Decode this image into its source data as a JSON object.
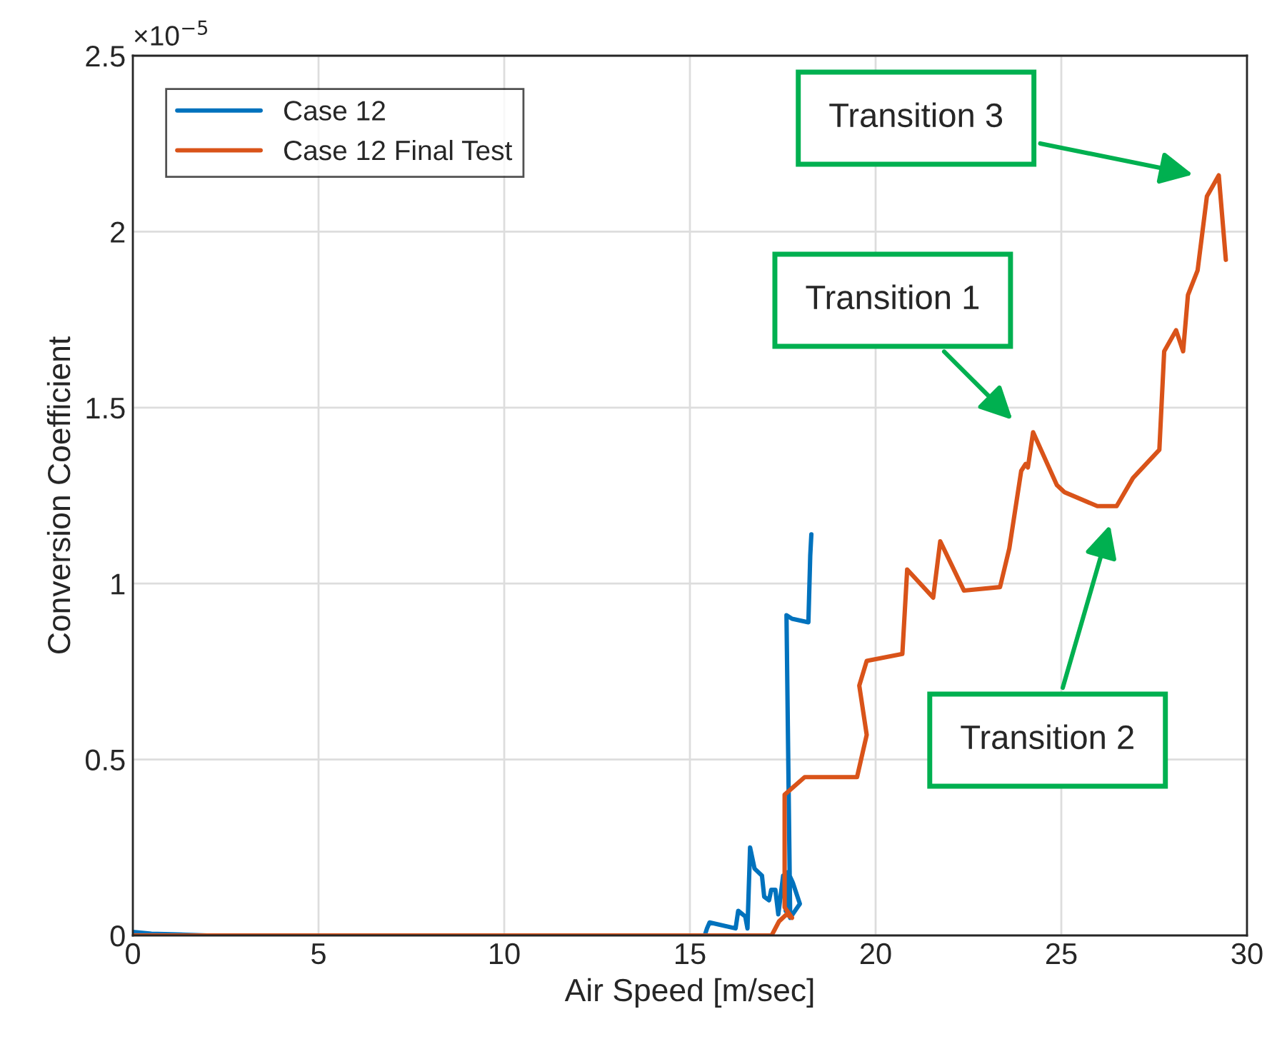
{
  "chart_data": {
    "type": "line",
    "xlabel": "Air Speed [m/sec]",
    "ylabel": "Conversion Coefficient",
    "xlim": [
      0,
      30
    ],
    "xticks": [
      0,
      5,
      10,
      15,
      20,
      25,
      30
    ],
    "ylim": [
      0,
      2.5
    ],
    "yticks": [
      0,
      0.5,
      1,
      1.5,
      2,
      2.5
    ],
    "grid": true,
    "legend": "top left",
    "line_style": "solid",
    "marker": "none",
    "series": [
      {
        "name": "Case 12",
        "color": "#0072bd",
        "x": [
          0,
          0.5,
          2,
          8,
          15.4,
          15.46,
          15.53,
          16.23,
          16.3,
          16.49,
          16.55,
          16.62,
          16.74,
          16.94,
          17.0,
          17.13,
          17.19,
          17.3,
          17.38,
          17.51,
          17.58,
          17.64,
          17.77,
          17.96,
          17.7,
          17.6,
          17.75,
          18.19,
          18.24,
          18.27
        ],
        "values": [
          0.01,
          0.005,
          0,
          0,
          0,
          0.02,
          0.037,
          0.02,
          0.07,
          0.054,
          0.02,
          0.25,
          0.19,
          0.17,
          0.11,
          0.1,
          0.13,
          0.13,
          0.06,
          0.17,
          0.07,
          0.18,
          0.15,
          0.09,
          0.05,
          0.91,
          0.9,
          0.89,
          1.08,
          1.14
        ]
      },
      {
        "name": "Case 12 Final Test",
        "color": "#d95319",
        "x": [
          0,
          5,
          10,
          15,
          17.2,
          17.4,
          17.6,
          17.75,
          17.55,
          17.55,
          18.09,
          19.5,
          19.76,
          19.56,
          19.76,
          20.72,
          20.85,
          21.55,
          21.74,
          22.38,
          23.35,
          23.6,
          23.92,
          24.04,
          24.1,
          24.24,
          24.88,
          25.08,
          25.97,
          26.49,
          26.93,
          27.64,
          27.77,
          28.09,
          28.28,
          28.41,
          28.67,
          28.92,
          29.24,
          29.43
        ],
        "values": [
          0,
          0,
          0,
          0,
          0,
          0.04,
          0.06,
          0.05,
          0.08,
          0.4,
          0.45,
          0.45,
          0.57,
          0.71,
          0.78,
          0.8,
          1.04,
          0.96,
          1.12,
          0.98,
          0.99,
          1.1,
          1.32,
          1.34,
          1.33,
          1.43,
          1.28,
          1.26,
          1.22,
          1.22,
          1.3,
          1.38,
          1.66,
          1.72,
          1.66,
          1.82,
          1.89,
          2.1,
          2.16,
          1.92
        ]
      }
    ],
    "annotations": [
      "×10$^{−5}$",
      "Transition 1",
      "Transition 2",
      "Transition 3"
    ]
  }
}
